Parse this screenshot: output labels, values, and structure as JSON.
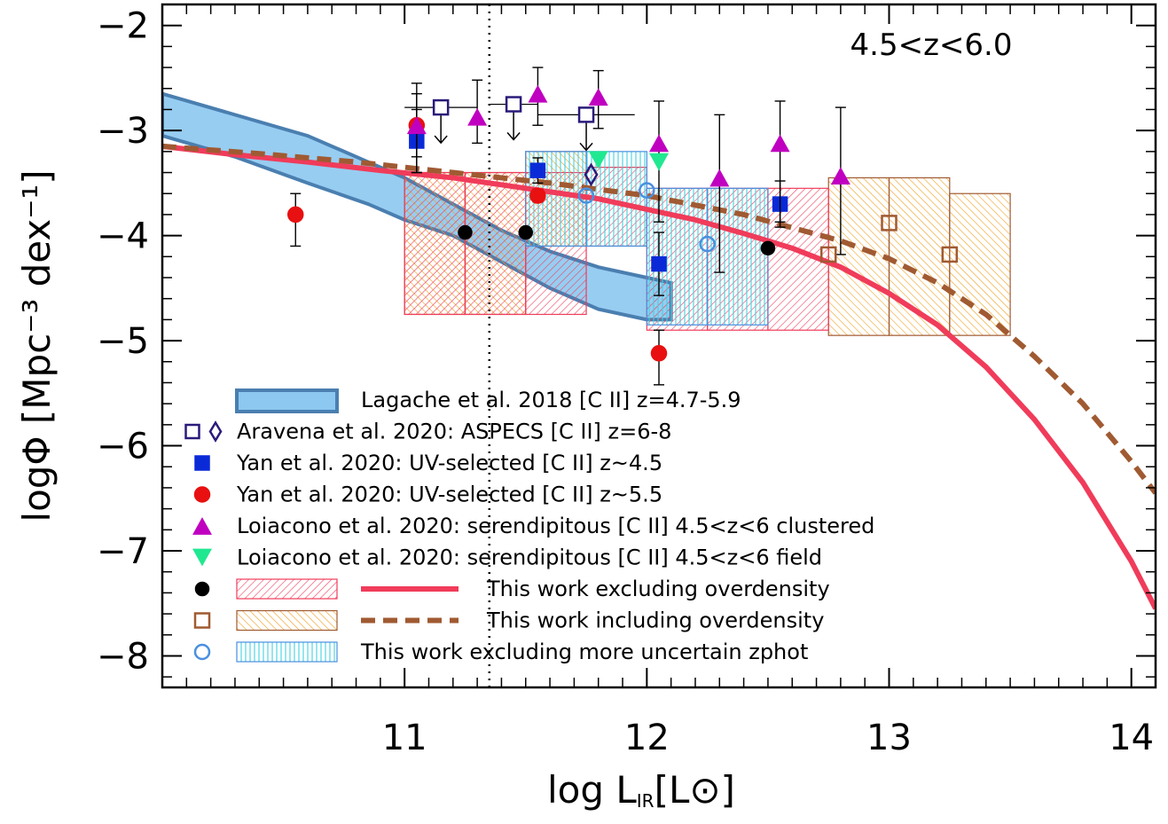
{
  "chart_data": {
    "type": "scatter",
    "annotation": "4.5<z<6.0",
    "xlabel_main": "log L",
    "xlabel_sub": "IR",
    "xlabel_unit": "[L⊙]",
    "ylabel": "logΦ [Mpc⁻³ dex⁻¹]",
    "xlim": [
      10.0,
      14.1
    ],
    "ylim": [
      -8.3,
      -1.8
    ],
    "xticks": [
      11,
      12,
      13,
      14
    ],
    "xtick_labels": [
      "11",
      "12",
      "13",
      "14"
    ],
    "yticks": [
      -2,
      -3,
      -4,
      -5,
      -6,
      -7,
      -8
    ],
    "ytick_labels": [
      "−2",
      "−3",
      "−4",
      "−5",
      "−6",
      "−7",
      "−8"
    ],
    "vline_x": 11.35,
    "colors": {
      "blue_band_fill": "#8cc8f0",
      "blue_band_edge": "#4a7fb0",
      "aravena": "#2a1a7a",
      "yan45": "#0a2ad8",
      "yan55": "#e81010",
      "loiacono_clustered": "#c000c0",
      "loiacono_field": "#20e890",
      "excl_overdensity": "#f03c5a",
      "incl_overdensity": "#a05a32",
      "excl_zphot": "#4a90e0"
    },
    "series": [
      {
        "name": "Lagache et al. 2018 [C II] z=4.7-5.9",
        "kind": "band",
        "x": [
          10.0,
          10.3,
          10.6,
          10.85,
          11.0,
          11.2,
          11.4,
          11.6,
          11.8,
          12.0,
          12.1
        ],
        "upper": [
          -2.65,
          -2.85,
          -3.05,
          -3.3,
          -3.45,
          -3.7,
          -3.95,
          -4.15,
          -4.3,
          -4.4,
          -4.45
        ],
        "lower": [
          -3.05,
          -3.25,
          -3.5,
          -3.7,
          -3.85,
          -4.0,
          -4.25,
          -4.5,
          -4.7,
          -4.8,
          -4.8
        ]
      },
      {
        "name": "Aravena et al. 2020: ASPECS [C II] z=6-8",
        "kind": "upper_limit_squares",
        "x": [
          11.15,
          11.45,
          11.75
        ],
        "y": [
          -2.78,
          -2.75,
          -2.85
        ],
        "xerr": [
          0.15,
          0.1,
          0.2
        ],
        "diamond": {
          "x": 11.77,
          "y": -3.42
        }
      },
      {
        "name": "Yan et al. 2020: UV-selected [C II] z~4.5",
        "kind": "filled_square",
        "x": [
          11.05,
          11.55,
          12.05,
          12.55
        ],
        "y": [
          -3.1,
          -3.38,
          -4.27,
          -3.7
        ],
        "yerr_up": [
          0.3,
          0.12,
          0.3,
          0.22
        ],
        "yerr_dn": [
          0.3,
          0.12,
          0.3,
          0.22
        ]
      },
      {
        "name": "Yan et al. 2020: UV-selected [C II] z~5.5",
        "kind": "filled_circle",
        "x": [
          10.55,
          11.05,
          11.55,
          12.05
        ],
        "y": [
          -3.8,
          -2.95,
          -3.62,
          -5.12
        ],
        "yerr_up": [
          0.2,
          0.3,
          0.06,
          0.22
        ],
        "yerr_dn": [
          0.3,
          0.3,
          0.06,
          0.3
        ]
      },
      {
        "name": "Loiacono et al. 2020: serendipitous [C II] 4.5<z<6 clustered",
        "kind": "triangle_up",
        "x": [
          11.05,
          11.3,
          11.55,
          11.8,
          12.05,
          12.3,
          12.55,
          12.8
        ],
        "y": [
          -2.95,
          -2.87,
          -2.65,
          -2.68,
          -3.12,
          -3.45,
          -3.12,
          -3.43
        ],
        "yerr_up": [
          0.4,
          0.35,
          0.25,
          0.25,
          0.4,
          0.6,
          0.4,
          0.65
        ],
        "yerr_dn": [
          0.45,
          0.25,
          0.3,
          0.3,
          0.75,
          0.9,
          0.75,
          0.75
        ]
      },
      {
        "name": "Loiacono et al. 2020: serendipitous [C II] 4.5<z<6 field",
        "kind": "triangle_down",
        "x": [
          11.8,
          12.05
        ],
        "y": [
          -3.28,
          -3.3
        ],
        "yerr_up": [
          0.0,
          0.0
        ],
        "yerr_dn": [
          0.0,
          0.0
        ]
      },
      {
        "name": "This work excluding overdensity",
        "kind": "boxes_dots_curve",
        "boxes": [
          {
            "x": [
              11.0,
              11.25
            ],
            "y": [
              -4.75,
              -3.4
            ]
          },
          {
            "x": [
              11.25,
              11.5
            ],
            "y": [
              -4.75,
              -3.4
            ]
          },
          {
            "x": [
              11.5,
              11.75
            ],
            "y": [
              -4.75,
              -3.4
            ]
          },
          {
            "x": [
              11.75,
              12.0
            ],
            "y": [
              -4.1,
              -3.35
            ]
          },
          {
            "x": [
              12.0,
              12.25
            ],
            "y": [
              -4.9,
              -3.55
            ]
          },
          {
            "x": [
              12.25,
              12.5
            ],
            "y": [
              -4.9,
              -3.55
            ]
          },
          {
            "x": [
              12.5,
              12.75
            ],
            "y": [
              -4.9,
              -3.55
            ]
          }
        ],
        "points_x": [
          11.25,
          11.5,
          12.5
        ],
        "points_y": [
          -3.97,
          -3.97,
          -4.12
        ],
        "curve_x": [
          10.0,
          10.3,
          10.6,
          10.9,
          11.2,
          11.5,
          11.8,
          12.0,
          12.2,
          12.4,
          12.6,
          12.8,
          13.0,
          13.2,
          13.4,
          13.6,
          13.8,
          14.0,
          14.1
        ],
        "curve_y": [
          -3.15,
          -3.23,
          -3.3,
          -3.38,
          -3.45,
          -3.55,
          -3.65,
          -3.75,
          -3.85,
          -3.98,
          -4.12,
          -4.3,
          -4.55,
          -4.85,
          -5.25,
          -5.75,
          -6.35,
          -7.1,
          -7.55
        ]
      },
      {
        "name": "This work including overdensity",
        "kind": "boxes_squares_curve",
        "boxes": [
          {
            "x": [
              11.0,
              11.25
            ],
            "y": [
              -4.75,
              -3.4
            ]
          },
          {
            "x": [
              11.25,
              11.5
            ],
            "y": [
              -4.75,
              -3.4
            ]
          },
          {
            "x": [
              11.5,
              11.75
            ],
            "y": [
              -4.1,
              -3.2
            ]
          },
          {
            "x": [
              12.75,
              13.0
            ],
            "y": [
              -4.95,
              -3.45
            ]
          },
          {
            "x": [
              13.0,
              13.25
            ],
            "y": [
              -4.95,
              -3.45
            ]
          },
          {
            "x": [
              13.25,
              13.5
            ],
            "y": [
              -4.95,
              -3.6
            ]
          }
        ],
        "points_x": [
          12.75,
          13.0,
          13.25
        ],
        "points_y": [
          -4.18,
          -3.88,
          -4.18
        ],
        "curve_x": [
          10.0,
          10.4,
          10.8,
          11.2,
          11.6,
          12.0,
          12.4,
          12.8,
          13.0,
          13.2,
          13.4,
          13.6,
          13.8,
          14.0,
          14.1
        ],
        "curve_y": [
          -3.15,
          -3.22,
          -3.3,
          -3.4,
          -3.5,
          -3.62,
          -3.8,
          -4.05,
          -4.22,
          -4.45,
          -4.75,
          -5.15,
          -5.6,
          -6.15,
          -6.45
        ]
      },
      {
        "name": "This work excluding more uncertain zphot",
        "kind": "boxes_open_circles",
        "boxes": [
          {
            "x": [
              11.5,
              11.75
            ],
            "y": [
              -4.1,
              -3.2
            ]
          },
          {
            "x": [
              11.75,
              12.0
            ],
            "y": [
              -4.1,
              -3.2
            ]
          },
          {
            "x": [
              12.0,
              12.25
            ],
            "y": [
              -4.85,
              -3.55
            ]
          },
          {
            "x": [
              12.25,
              12.5
            ],
            "y": [
              -4.85,
              -3.55
            ]
          }
        ],
        "points_x": [
          11.75,
          12.0,
          12.25
        ],
        "points_y": [
          -3.62,
          -3.57,
          -4.08
        ]
      }
    ],
    "legend": [
      {
        "symbol": "band",
        "text": "Lagache et al. 2018 [C II] z=4.7-5.9"
      },
      {
        "symbol": "square_diamond",
        "text": "Aravena et al. 2020: ASPECS [C II] z=6-8"
      },
      {
        "symbol": "filled_square",
        "text": "Yan et al. 2020: UV-selected [C II] z~4.5"
      },
      {
        "symbol": "filled_circle",
        "text": "Yan et al. 2020: UV-selected [C II] z~5.5"
      },
      {
        "symbol": "triangle_up",
        "text": "Loiacono et al. 2020: serendipitous [C II] 4.5<z<6 clustered"
      },
      {
        "symbol": "triangle_down",
        "text": "Loiacono et al. 2020: serendipitous [C II] 4.5<z<6 field"
      },
      {
        "symbol": "excl_overdensity",
        "text": "This work excluding overdensity"
      },
      {
        "symbol": "incl_overdensity",
        "text": "This work including overdensity"
      },
      {
        "symbol": "excl_zphot",
        "text": "This work excluding more uncertain zphot"
      }
    ]
  }
}
